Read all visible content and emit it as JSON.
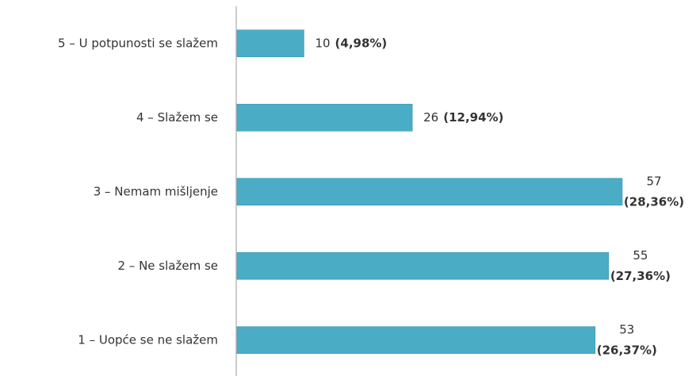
{
  "chart_data": {
    "type": "bar",
    "orientation": "horizontal",
    "categories": [
      "5 – U potpunosti se slažem",
      "4 – Slažem se",
      "3 – Nemam mišljenje",
      "2 – Ne slažem se",
      "1 – Uopće se ne slažem"
    ],
    "values": [
      10,
      26,
      57,
      55,
      53
    ],
    "percentage_labels": [
      "(4,98%)",
      "(12,94%)",
      "(28,36%)",
      "(27,36%)",
      "(26,37%)"
    ],
    "color": "#4bacc6"
  }
}
